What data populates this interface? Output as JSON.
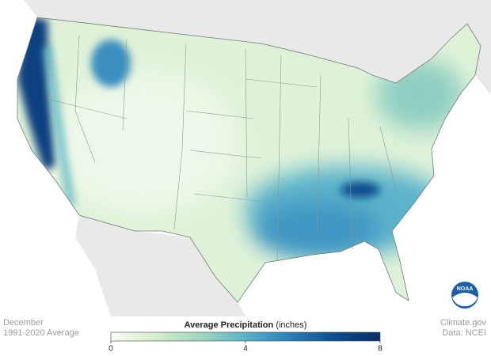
{
  "caption": {
    "period": "December",
    "normals": "1991-2020 Average"
  },
  "credits": {
    "site": "Climate.gov",
    "source": "Data: NCEI"
  },
  "logo": {
    "text": "NOAA"
  },
  "legend": {
    "title": "Average Precipitation",
    "unit": "(inches)",
    "range": [
      0,
      8
    ],
    "ticks": [
      0,
      4,
      8
    ],
    "colors": [
      "#fbfdf5",
      "#d3edcb",
      "#9fd6bf",
      "#58b3c9",
      "#2b7fb8",
      "#0b4d8f",
      "#082f6a"
    ]
  }
}
